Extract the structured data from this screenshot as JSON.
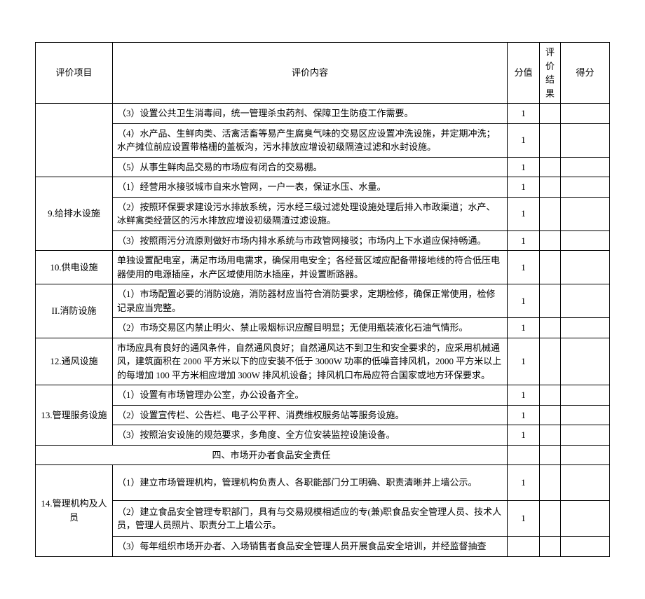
{
  "headers": {
    "item": "评价项目",
    "content": "评价内容",
    "score": "分值",
    "result": "评价结果",
    "final": "得分"
  },
  "rows": [
    {
      "content": "（3）设置公共卫生消毒间，统一管理杀虫药剂、保障卫生防疫工作需要。",
      "score": "1"
    },
    {
      "content": "（4）水产品、生鲜肉类、活禽活畜等易产生腐臭气味的交易区应设置冲洗设施，并定期冲洗；水产摊位前应设置带格栅的盖板沟，污水排放应增设初级隔渣过滤和水封设施。",
      "score": "1"
    },
    {
      "content": "（5）从事生鲜肉品交易的市场应有闭合的交易棚。",
      "score": "1"
    }
  ],
  "item9": {
    "label": "9.给排水设施",
    "rows": [
      {
        "content": "（1）经营用水接驳城市自来水管网，一户一表，保证水压、水量。",
        "score": "1"
      },
      {
        "content": "（2）按照环保要求建设污水排放系统，污水经三级过滤处理设施处理后排入市政渠道；水产、冰鲜禽类经营区的污水排放应增设初级隔渣过滤设施。",
        "score": "1"
      },
      {
        "content": "（3）按照雨污分流原则做好市场内排水系统与市政管网接驳；市场内上下水道应保持畅通。",
        "score": "1"
      }
    ]
  },
  "item10": {
    "label": "10.供电设施",
    "content": "单独设置配电室，满足市场用电需求，确保用电安全；各经营区域应配备带接地线的符合低压电器使用的电源插座，水产区域使用防水插座，并设置断路器。",
    "score": "1"
  },
  "item11": {
    "label": "II.消防设施",
    "rows": [
      {
        "content": "（1）市场配置必要的消防设施，消防器材应当符合消防要求，定期检修，确保正常使用，检修记录应当完整。",
        "score": "1"
      },
      {
        "content": "（2）市场交易区内禁止明火、禁止吸烟标识应醒目明显；无使用瓶装液化石油气情形。",
        "score": "1"
      }
    ]
  },
  "item12": {
    "label": "12.通风设施",
    "content": "市场应具有良好的通风条件，自然通风良好；自然通风达不到卫生和安全要求的，应采用机械通风，建筑面积在 2000 平方米以下的应安装不低于 3000W 功率的低噪音排风机，2000 平方米以上的每增加 100 平方米相应增加 300W 排风机设备；排风机口布局应符合国家或地方环保要求。",
    "score": "1"
  },
  "item13": {
    "label": "13.管理服务设施",
    "rows": [
      {
        "content": "（1）设置有市场管理办公室，办公设备齐全。",
        "score": "1"
      },
      {
        "content": "（2）设置宣传栏、公告栏、电子公平秤、消费维权服务站等服务设施。",
        "score": "1"
      },
      {
        "content": "（3）按照治安设施的规范要求，多角度、全方位安装监控设施设备。",
        "score": "1"
      }
    ]
  },
  "section4": "四、市场开办者食品安全责任",
  "item14": {
    "label": "14.管理机构及人员",
    "rows": [
      {
        "content": "（1）建立市场管理机构，管理机构负责人、各职能部门分工明确、职责清晰并上墙公示。",
        "score": "1"
      },
      {
        "content": "（2）建立食品安全管理专职部门，具有与交易规模相适应的专(兼)职食品安全管理人员、技术人员，管理人员照片、职责分工上墙公示。",
        "score": "1"
      },
      {
        "content": "（3）每年组织市场开办者、入场销售者食品安全管理人员开展食品安全培训，并经监督抽查",
        "score": ""
      }
    ]
  }
}
